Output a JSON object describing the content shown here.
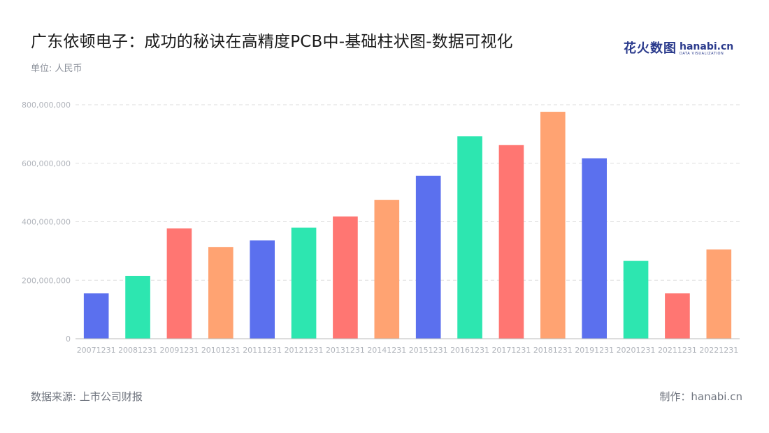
{
  "header": {
    "title": "广东依顿电子：成功的秘诀在高精度PCB中-基础柱状图-数据可视化",
    "unit": "单位: 人民币"
  },
  "logo": {
    "cn": "花火数图",
    "en": "hanabi.cn",
    "en_sub": "DATA VISUALIZATION"
  },
  "footer": {
    "source": "数据来源: 上市公司财报",
    "credit": "制作：hanabi.cn"
  },
  "colors": {
    "palette": [
      "#5b70ee",
      "#2de6b0",
      "#ff7672",
      "#ffa372"
    ],
    "grid": "#dddddd",
    "axis": "#bbbbbb",
    "tick_text": "#b0b4bb"
  },
  "chart_data": {
    "type": "bar",
    "categories": [
      "20071231",
      "20081231",
      "20091231",
      "20101231",
      "20111231",
      "20121231",
      "20131231",
      "20141231",
      "20151231",
      "20161231",
      "20171231",
      "20181231",
      "20191231",
      "20201231",
      "20211231",
      "20221231"
    ],
    "values": [
      155000000,
      215000000,
      377000000,
      313000000,
      336000000,
      380000000,
      418000000,
      475000000,
      557000000,
      692000000,
      662000000,
      776000000,
      617000000,
      266000000,
      155000000,
      305000000
    ],
    "y_ticks": [
      "0",
      "200,000,000",
      "400,000,000",
      "600,000,000",
      "800,000,000"
    ],
    "ylim": [
      0,
      800000000
    ],
    "grid": true,
    "title": "广东依顿电子：成功的秘诀在高精度PCB中-基础柱状图-数据可视化",
    "ylabel": "单位: 人民币",
    "xlabel": ""
  }
}
